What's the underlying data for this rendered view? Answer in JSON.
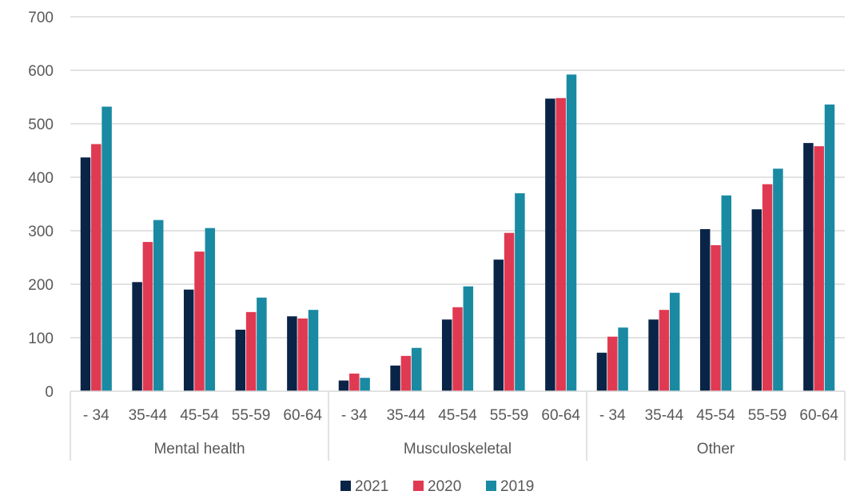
{
  "chart_data": {
    "type": "bar",
    "title": "",
    "xlabel": "",
    "ylabel": "",
    "ylim": [
      0,
      700
    ],
    "yticks": [
      "0",
      "100",
      "200",
      "300",
      "400",
      "500",
      "600",
      "700"
    ],
    "grid": true,
    "legend_position": "bottom",
    "groups": [
      {
        "label": "Mental health",
        "categories": [
          "- 34",
          "35-44",
          "45-54",
          "55-59",
          "60-64"
        ]
      },
      {
        "label": "Musculoskeletal",
        "categories": [
          "- 34",
          "35-44",
          "45-54",
          "55-59",
          "60-64"
        ]
      },
      {
        "label": "Other",
        "categories": [
          "- 34",
          "35-44",
          "45-54",
          "55-59",
          "60-64"
        ]
      }
    ],
    "series": [
      {
        "name": "2021",
        "color": "#0a2447",
        "values": [
          437,
          204,
          190,
          115,
          140,
          20,
          48,
          134,
          246,
          547,
          72,
          134,
          303,
          340,
          464
        ]
      },
      {
        "name": "2020",
        "color": "#e03a52",
        "values": [
          462,
          279,
          261,
          148,
          136,
          33,
          66,
          157,
          296,
          548,
          102,
          152,
          273,
          387,
          458
        ]
      },
      {
        "name": "2019",
        "color": "#1a8aa3",
        "values": [
          532,
          320,
          305,
          175,
          152,
          25,
          81,
          196,
          370,
          592,
          119,
          184,
          366,
          416,
          536
        ]
      }
    ]
  }
}
